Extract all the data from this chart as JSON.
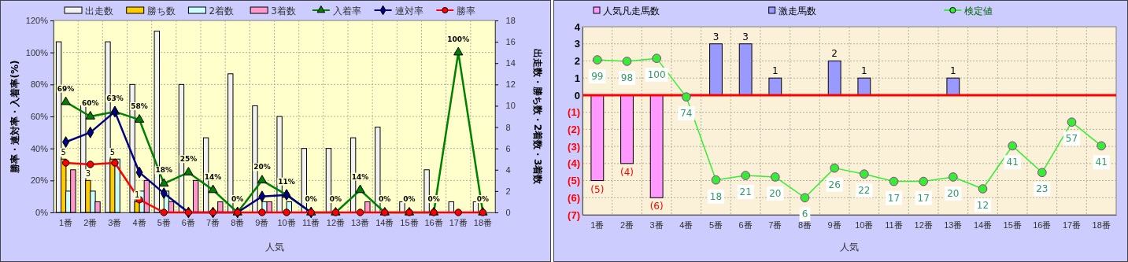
{
  "chart_data": [
    {
      "type": "bar",
      "xlabel": "人気",
      "ylabel": "勝率・連対率・入着率(%)",
      "y2label": "出走数・勝ち数・2着数・3着数",
      "categories": [
        "1番",
        "2番",
        "3番",
        "4番",
        "5番",
        "6番",
        "7番",
        "8番",
        "9番",
        "10番",
        "11番",
        "12番",
        "13番",
        "14番",
        "15番",
        "16番",
        "17番",
        "18番"
      ],
      "ylim": [
        0,
        120
      ],
      "yticks": [
        {
          "value": 0,
          "label": "0%"
        },
        {
          "value": 20,
          "label": "20%"
        },
        {
          "value": 40,
          "label": "40%"
        },
        {
          "value": 60,
          "label": "60%"
        },
        {
          "value": 80,
          "label": "80%"
        },
        {
          "value": 100,
          "label": "100%"
        },
        {
          "value": 120,
          "label": "120%"
        }
      ],
      "y2lim": [
        0,
        18
      ],
      "y2ticks": [
        0,
        2,
        4,
        6,
        8,
        10,
        12,
        14,
        16,
        18
      ],
      "grid": true,
      "legend": "top",
      "series": [
        {
          "name": "出走数",
          "axis": "y2",
          "color": "#f2f2f2",
          "values": [
            16,
            10,
            16,
            12,
            17,
            12,
            7,
            13,
            10,
            9,
            6,
            6,
            7,
            8,
            1,
            4,
            1,
            1
          ]
        },
        {
          "name": "勝ち数",
          "axis": "y2",
          "color": "#ffcc00",
          "values": [
            5,
            3,
            5,
            1,
            0,
            0,
            0,
            0,
            0,
            0,
            0,
            0,
            0,
            0,
            0,
            0,
            0,
            0
          ],
          "value_labels": [
            "5",
            "3",
            "5",
            "1",
            null,
            null,
            null,
            null,
            null,
            null,
            null,
            null,
            null,
            null,
            null,
            null,
            null,
            null
          ]
        },
        {
          "name": "2着数",
          "axis": "y2",
          "color": "#ccffff",
          "values": [
            2,
            2,
            5,
            2,
            2,
            0,
            0,
            0,
            1,
            1,
            0,
            0,
            0,
            0,
            0,
            0,
            0,
            0
          ]
        },
        {
          "name": "3着数",
          "axis": "y2",
          "color": "#ff99cc",
          "values": [
            4,
            1,
            0,
            3,
            1,
            3,
            1,
            0,
            1,
            0,
            0,
            0,
            1,
            0,
            0,
            0,
            0,
            0
          ]
        },
        {
          "name": "入着率",
          "type": "line",
          "marker": "triangle",
          "color": "#008000",
          "values": [
            69,
            60,
            63,
            58,
            18,
            25,
            14,
            0,
            20,
            11,
            0,
            0,
            14,
            0,
            0,
            0,
            100,
            0
          ],
          "value_labels": [
            "69%",
            "60%",
            "63%",
            "58%",
            "18%",
            "25%",
            "14%",
            "0%",
            "20%",
            "11%",
            "0%",
            "0%",
            "14%",
            "0%",
            "0%",
            "0%",
            "100%",
            "0%"
          ]
        },
        {
          "name": "連対率",
          "type": "line",
          "marker": "diamond",
          "color": "#000080",
          "values": [
            44,
            50,
            63,
            25,
            12,
            0,
            0,
            0,
            10,
            11,
            0,
            null,
            null,
            null,
            null,
            null,
            null,
            null
          ]
        },
        {
          "name": "勝率",
          "type": "line",
          "marker": "circle",
          "color": "#ff0000",
          "values": [
            31,
            30,
            31,
            8,
            0,
            0,
            0,
            0,
            0,
            0,
            0,
            0,
            0,
            0,
            0,
            0,
            0,
            0
          ]
        }
      ]
    },
    {
      "type": "bar",
      "xlabel": "人気",
      "stacked": true,
      "grid": true,
      "legend": "top",
      "categories": [
        "1番",
        "2番",
        "3番",
        "4番",
        "5番",
        "6番",
        "7番",
        "8番",
        "9番",
        "10番",
        "11番",
        "12番",
        "13番",
        "14番",
        "15番",
        "16番",
        "17番",
        "18番"
      ],
      "ylim": [
        -7,
        4
      ],
      "yticks": [
        4,
        3,
        2,
        1,
        0,
        {
          "value": -1,
          "label": "(1)"
        },
        {
          "value": -2,
          "label": "(2)"
        },
        {
          "value": -3,
          "label": "(3)"
        },
        {
          "value": -4,
          "label": "(4)"
        },
        {
          "value": -5,
          "label": "(5)"
        },
        {
          "value": -6,
          "label": "(6)"
        },
        {
          "value": -7,
          "label": "(7)"
        }
      ],
      "y2lim": [
        -5.5,
        121.3
      ],
      "ref_lines": [
        {
          "axis": "y",
          "value": 0,
          "color": "#ff0000"
        }
      ],
      "series": [
        {
          "name": "人気凡走馬数",
          "color": "#ff99ff",
          "values": [
            -5,
            -4,
            -6,
            null,
            null,
            null,
            null,
            null,
            null,
            null,
            null,
            null,
            null,
            null,
            null,
            null,
            null,
            null
          ],
          "value_labels": [
            "(5)",
            "(4)",
            "(6)",
            null,
            null,
            null,
            null,
            null,
            null,
            null,
            null,
            null,
            null,
            null,
            null,
            null,
            null,
            null
          ]
        },
        {
          "name": "激走馬数",
          "color": "#9999ff",
          "values": [
            null,
            null,
            null,
            null,
            3,
            3,
            1,
            null,
            2,
            1,
            null,
            null,
            1,
            null,
            null,
            null,
            null,
            null
          ],
          "value_labels": [
            null,
            null,
            null,
            null,
            "3",
            "3",
            "1",
            null,
            "2",
            "1",
            null,
            null,
            "1",
            null,
            null,
            null,
            null,
            null
          ]
        },
        {
          "name": "検定値",
          "type": "line",
          "axis": "y2",
          "marker": "circle",
          "color": "#33ee33",
          "values": [
            99,
            98,
            100,
            74,
            18,
            21,
            20,
            6,
            26,
            22,
            17,
            17,
            20,
            12,
            41,
            23,
            57,
            41
          ],
          "value_labels": [
            "99",
            "98",
            "100",
            "74",
            "18",
            "21",
            "20",
            "6",
            "26",
            "22",
            "17",
            "17",
            "20",
            "12",
            "41",
            "23",
            "57",
            "41"
          ]
        }
      ]
    }
  ]
}
